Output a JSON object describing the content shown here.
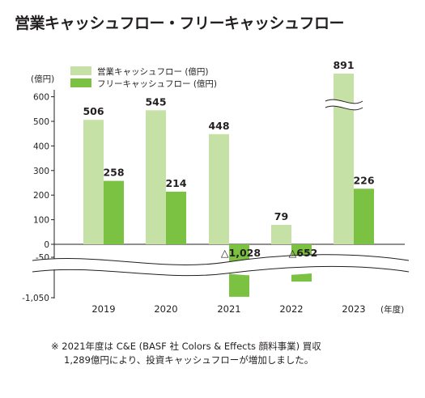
{
  "title": "営業キャッシュフロー・フリーキャッシュフロー",
  "chart_data": {
    "type": "bar",
    "unit_label": "(億円)",
    "year_suffix": "(年度)",
    "categories": [
      "2019",
      "2020",
      "2021",
      "2022",
      "2023"
    ],
    "series": [
      {
        "name": "営業キャッシュフロー (億円)",
        "color": "#c5e1a5",
        "values": [
          506,
          545,
          448,
          79,
          891
        ]
      },
      {
        "name": "フリーキャッシュフロー (億円)",
        "color": "#7cc242",
        "values": [
          258,
          214,
          -1028,
          -652,
          226
        ]
      }
    ],
    "data_labels": [
      [
        "506",
        "545",
        "448",
        "79",
        "891"
      ],
      [
        "258",
        "214",
        "△1,028",
        "△652",
        "226"
      ]
    ],
    "y_ticks": [
      "600",
      "500",
      "400",
      "300",
      "200",
      "100",
      "0",
      "-50",
      "-1,050"
    ],
    "y_tick_values": [
      600,
      500,
      400,
      300,
      200,
      100,
      0,
      -50,
      -1050
    ],
    "ylim": [
      -1050,
      600
    ],
    "axis_breaks": [
      "between -50 and -1,050",
      "891 bar above 600"
    ]
  },
  "note": {
    "line1": "※ 2021年度は C&E (BASF 社 Colors & Effects 顔料事業) 買収",
    "line2": "1,289億円により、投資キャッシュフローが増加しました。"
  }
}
